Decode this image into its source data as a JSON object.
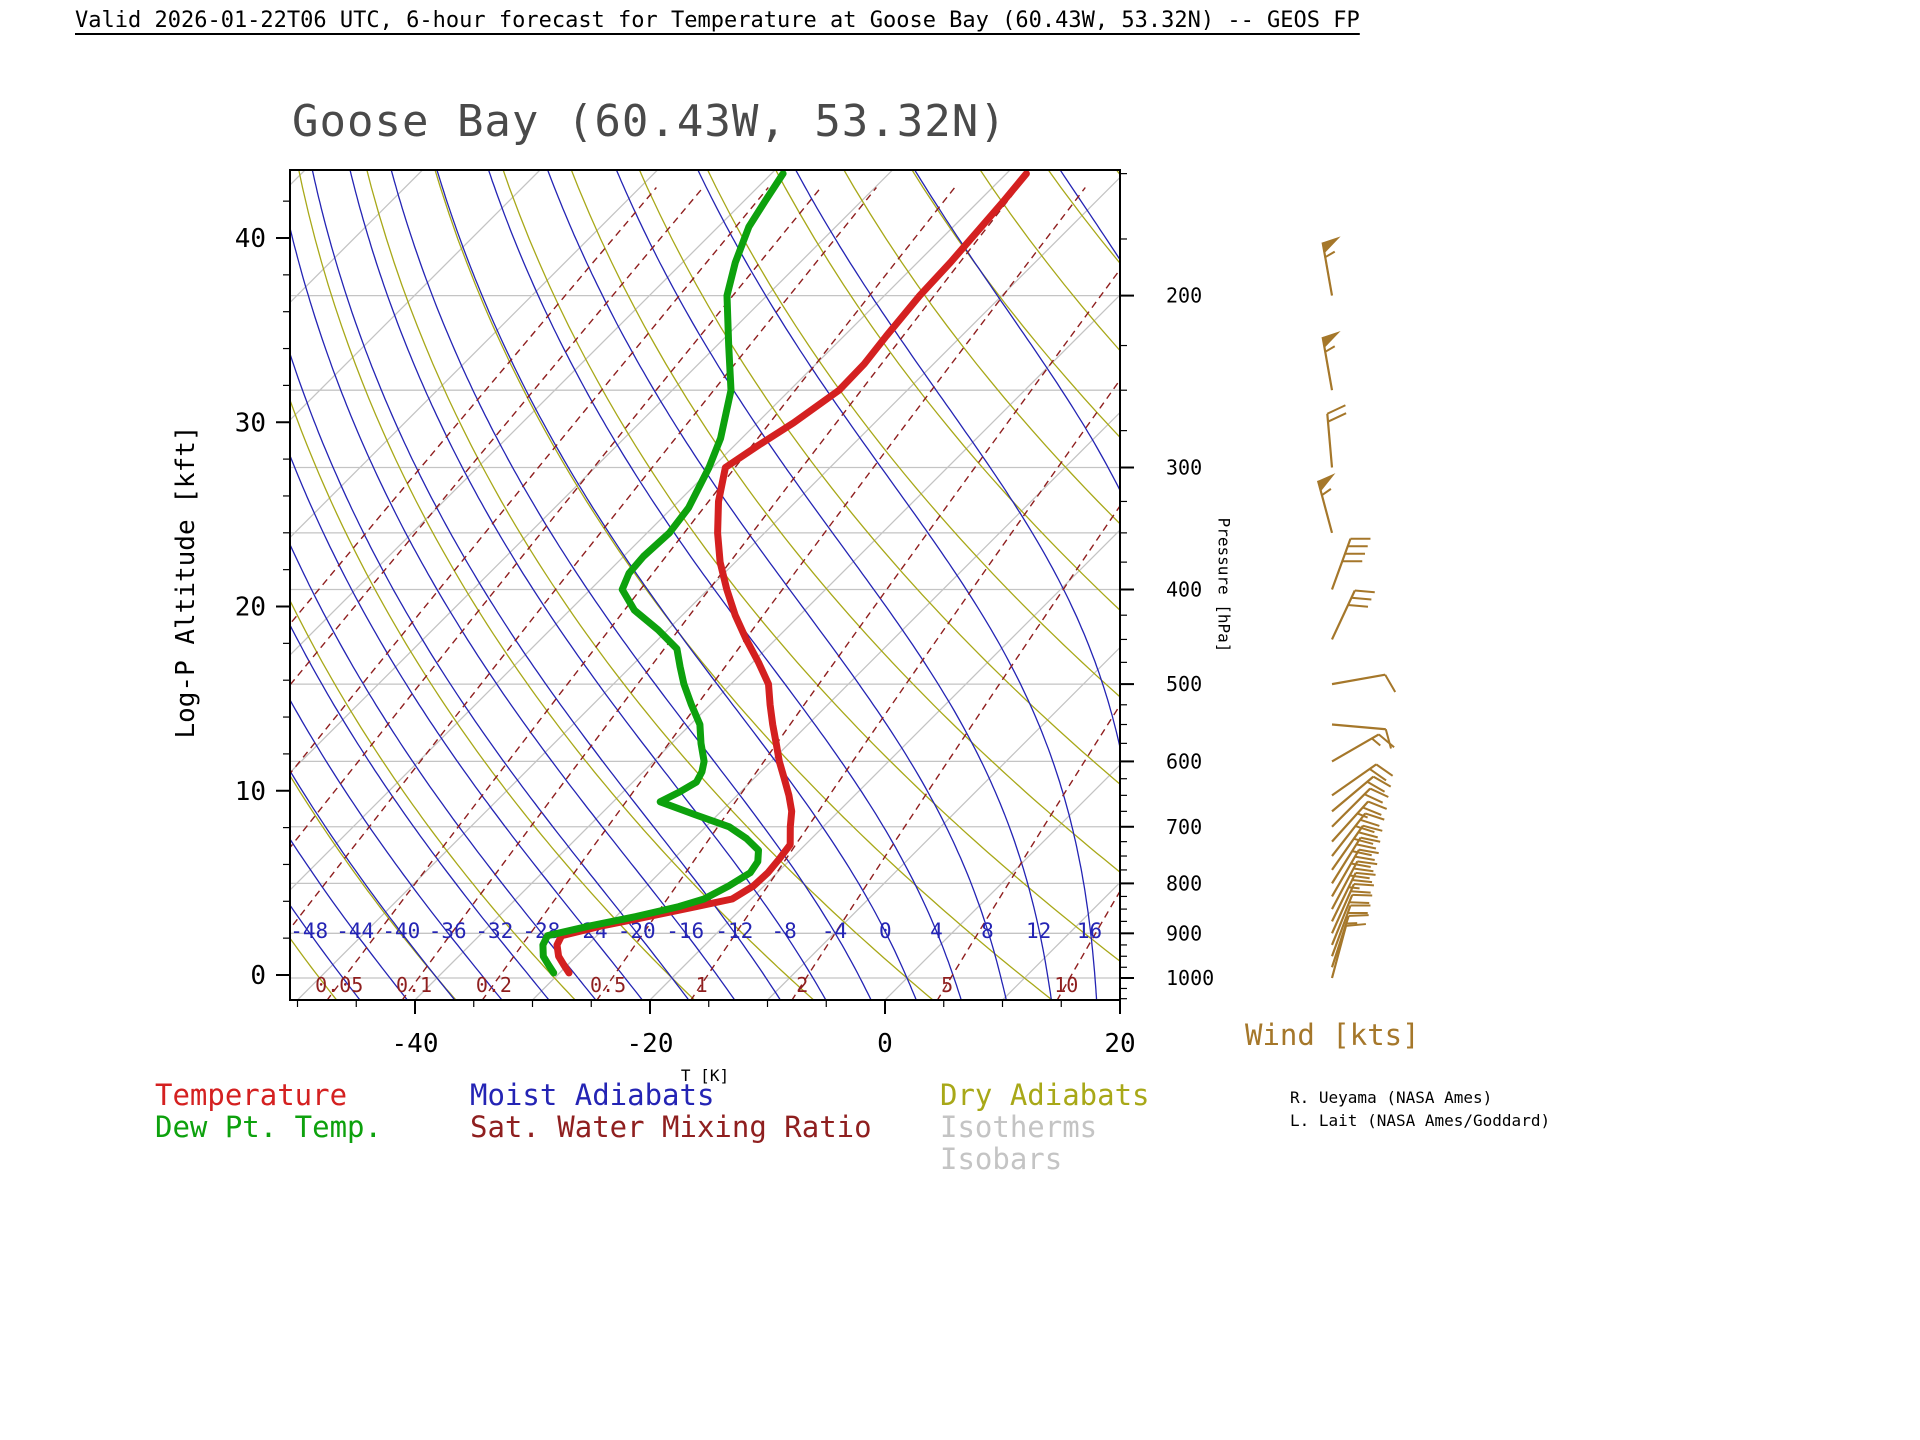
{
  "header": {
    "title": "Valid 2026-01-22T06 UTC, 6-hour forecast for Temperature at Goose Bay (60.43W, 53.32N) -- GEOS FP"
  },
  "chart_data": {
    "type": "skewt_log_p_sounding",
    "title": "Goose Bay (60.43W, 53.32N)",
    "xlabel": "T [K]",
    "ylabel_left": "Log-P Altitude [kft]",
    "ylabel_right": "Pressure [hPa]",
    "x_tick_labels": [
      -40,
      -20,
      0,
      20
    ],
    "x_minor_tick_step_k": 5,
    "altitude_major_ticks_kft": [
      0,
      10,
      20,
      30,
      40
    ],
    "altitude_minor_tick_step_kft": 2,
    "pressure_tick_labels_hpa": [
      200,
      300,
      400,
      500,
      600,
      700,
      800,
      900,
      1000
    ],
    "isobars_hpa": [
      200,
      250,
      300,
      350,
      400,
      500,
      600,
      700,
      800,
      900,
      1000
    ],
    "isotherms_c": {
      "start": -120,
      "end": 30,
      "step": 10
    },
    "dry_adiabats_theta_c": {
      "start": -50,
      "end": 110,
      "step": 10
    },
    "moist_adiabats_c": {
      "start": -48,
      "end": 32,
      "step": 4
    },
    "moist_adiabat_labels_c": [
      -48,
      -44,
      -40,
      -36,
      -32,
      -28,
      -24,
      -20,
      -16,
      -12,
      -8,
      -4,
      0,
      4,
      8,
      12,
      16
    ],
    "mixing_ratio_lines_gkg": [
      0.001,
      0.002,
      0.005,
      0.01,
      0.02,
      0.05,
      0.1,
      0.2,
      0.5,
      1,
      2,
      5,
      10
    ],
    "mixing_ratio_labels": [
      {
        "v": 0.05,
        "t": "0.05"
      },
      {
        "v": 0.1,
        "t": "0.1"
      },
      {
        "v": 0.2,
        "t": "0.2"
      },
      {
        "v": 0.5,
        "t": "0.5"
      },
      {
        "v": 1,
        "t": "1"
      },
      {
        "v": 2,
        "t": "2"
      },
      {
        "v": 5,
        "t": "5"
      },
      {
        "v": 10,
        "t": "10"
      }
    ],
    "temperature_profile_p_t": [
      [
        988,
        -29.2
      ],
      [
        970,
        -30.3
      ],
      [
        950,
        -31.5
      ],
      [
        925,
        -32.6
      ],
      [
        905,
        -33.0
      ],
      [
        885,
        -30.5
      ],
      [
        865,
        -27.2
      ],
      [
        845,
        -24.0
      ],
      [
        830,
        -21.6
      ],
      [
        805,
        -20.9
      ],
      [
        780,
        -20.8
      ],
      [
        755,
        -21.0
      ],
      [
        730,
        -21.3
      ],
      [
        700,
        -22.8
      ],
      [
        675,
        -24.0
      ],
      [
        650,
        -25.6
      ],
      [
        625,
        -27.4
      ],
      [
        600,
        -29.3
      ],
      [
        575,
        -31.1
      ],
      [
        550,
        -33.0
      ],
      [
        525,
        -34.9
      ],
      [
        500,
        -36.8
      ],
      [
        475,
        -39.5
      ],
      [
        450,
        -42.5
      ],
      [
        425,
        -45.5
      ],
      [
        400,
        -48.4
      ],
      [
        375,
        -51.3
      ],
      [
        350,
        -54.0
      ],
      [
        325,
        -56.6
      ],
      [
        300,
        -58.9
      ],
      [
        285,
        -58.0
      ],
      [
        270,
        -56.9
      ],
      [
        250,
        -55.8
      ],
      [
        235,
        -55.9
      ],
      [
        220,
        -56.4
      ],
      [
        200,
        -57.0
      ],
      [
        185,
        -57.2
      ],
      [
        170,
        -57.6
      ],
      [
        160,
        -57.9
      ],
      [
        150,
        -58.3
      ]
    ],
    "dewpoint_profile_p_t": [
      [
        988,
        -30.5
      ],
      [
        970,
        -31.6
      ],
      [
        950,
        -32.8
      ],
      [
        925,
        -33.8
      ],
      [
        905,
        -34.2
      ],
      [
        885,
        -31.5
      ],
      [
        865,
        -28.3
      ],
      [
        845,
        -25.5
      ],
      [
        830,
        -24.0
      ],
      [
        805,
        -23.0
      ],
      [
        780,
        -22.3
      ],
      [
        760,
        -22.6
      ],
      [
        740,
        -23.5
      ],
      [
        720,
        -25.5
      ],
      [
        700,
        -28.0
      ],
      [
        680,
        -32.0
      ],
      [
        660,
        -36.0
      ],
      [
        645,
        -35.2
      ],
      [
        630,
        -34.6
      ],
      [
        615,
        -35.0
      ],
      [
        600,
        -35.7
      ],
      [
        575,
        -37.5
      ],
      [
        550,
        -39.2
      ],
      [
        525,
        -41.6
      ],
      [
        500,
        -44.0
      ],
      [
        480,
        -45.8
      ],
      [
        460,
        -47.6
      ],
      [
        440,
        -50.8
      ],
      [
        420,
        -54.5
      ],
      [
        400,
        -57.3
      ],
      [
        385,
        -58.1
      ],
      [
        370,
        -58.3
      ],
      [
        350,
        -58.1
      ],
      [
        330,
        -58.6
      ],
      [
        300,
        -60.3
      ],
      [
        280,
        -61.8
      ],
      [
        250,
        -65.0
      ],
      [
        225,
        -69.0
      ],
      [
        200,
        -73.4
      ],
      [
        185,
        -75.5
      ],
      [
        170,
        -77.4
      ],
      [
        160,
        -78.2
      ],
      [
        150,
        -79.0
      ]
    ],
    "wind_barbs": [
      {
        "p": 200,
        "kts": 55,
        "dir": 350
      },
      {
        "p": 250,
        "kts": 55,
        "dir": 350
      },
      {
        "p": 300,
        "kts": 20,
        "dir": 355
      },
      {
        "p": 350,
        "kts": 55,
        "dir": 345
      },
      {
        "p": 400,
        "kts": 40,
        "dir": 20
      },
      {
        "p": 450,
        "kts": 30,
        "dir": 25
      },
      {
        "p": 500,
        "kts": 8,
        "dir": 80
      },
      {
        "p": 550,
        "kts": 10,
        "dir": 95
      },
      {
        "p": 600,
        "kts": 15,
        "dir": 60
      },
      {
        "p": 650,
        "kts": 18,
        "dir": 55
      },
      {
        "p": 675,
        "kts": 20,
        "dir": 50
      },
      {
        "p": 700,
        "kts": 22,
        "dir": 45
      },
      {
        "p": 725,
        "kts": 25,
        "dir": 42
      },
      {
        "p": 750,
        "kts": 28,
        "dir": 38
      },
      {
        "p": 775,
        "kts": 30,
        "dir": 35
      },
      {
        "p": 800,
        "kts": 32,
        "dir": 32
      },
      {
        "p": 825,
        "kts": 30,
        "dir": 30
      },
      {
        "p": 850,
        "kts": 28,
        "dir": 28
      },
      {
        "p": 875,
        "kts": 25,
        "dir": 26
      },
      {
        "p": 900,
        "kts": 22,
        "dir": 24
      },
      {
        "p": 925,
        "kts": 20,
        "dir": 22
      },
      {
        "p": 950,
        "kts": 18,
        "dir": 20
      },
      {
        "p": 975,
        "kts": 15,
        "dir": 18
      },
      {
        "p": 1000,
        "kts": 12,
        "dir": 15
      }
    ],
    "colors": {
      "temperature": "#d42020",
      "dewpoint": "#0da10d",
      "moist_adiabat": "#2424b4",
      "dry_adiabat": "#a8a818",
      "isotherm": "#c4c4c4",
      "isobar": "#c4c4c4",
      "mixing_ratio": "#8f1f1f",
      "wind": "#a5772a",
      "axis": "#000000",
      "title": "#4a4a4a"
    }
  },
  "legend": {
    "temperature": {
      "label": "Temperature",
      "color": "#d42020"
    },
    "dewpoint": {
      "label": "Dew Pt. Temp.",
      "color": "#0da10d"
    },
    "moist_adiabats": {
      "label": "Moist Adiabats",
      "color": "#2424b4"
    },
    "mixing_ratio": {
      "label": "Sat. Water Mixing Ratio",
      "color": "#8f1f1f"
    },
    "dry_adiabats": {
      "label": "Dry Adiabats",
      "color": "#a8a818"
    },
    "isotherms": {
      "label": "Isotherms",
      "color": "#c4c4c4"
    },
    "isobars": {
      "label": "Isobars",
      "color": "#c4c4c4"
    }
  },
  "wind": {
    "title": "Wind [kts]",
    "color": "#a5772a"
  },
  "credits": {
    "line1": "R. Ueyama (NASA Ames)",
    "line2": "L. Lait (NASA Ames/Goddard)"
  }
}
